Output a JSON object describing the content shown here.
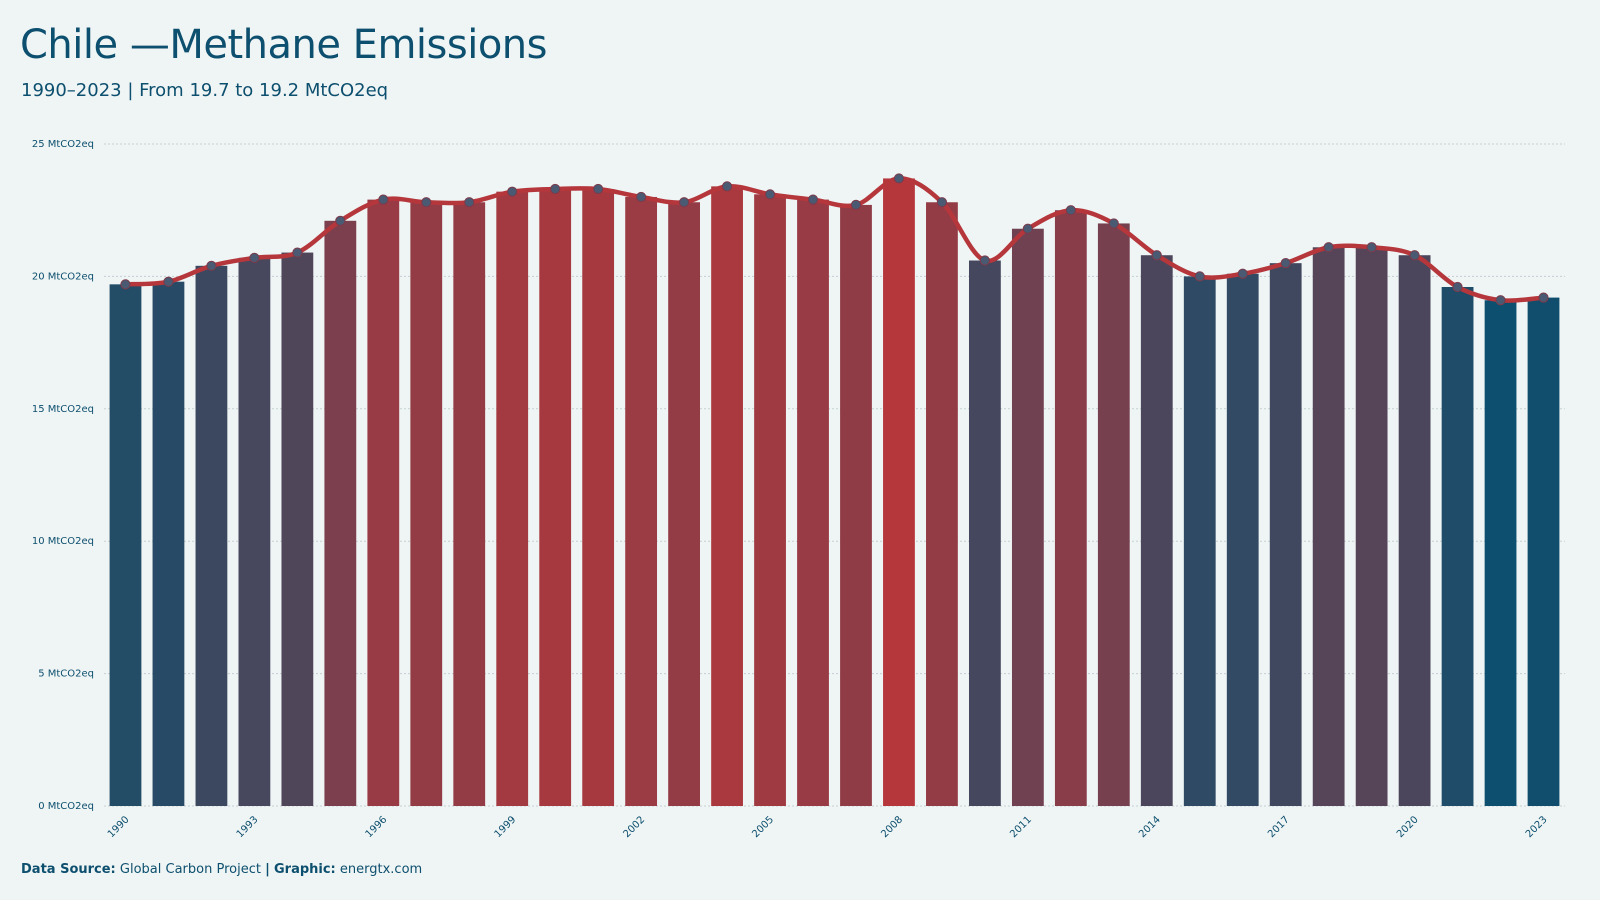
{
  "header": {
    "title": "Chile —Methane Emissions",
    "subtitle": "1990–2023 | From 19.7 to 19.2 MtCO2eq"
  },
  "footer": {
    "source_label": "Data Source:",
    "source_value": "Global Carbon Project",
    "separator": "|",
    "graphic_label": "Graphic:",
    "graphic_value": "energtx.com"
  },
  "colors": {
    "background": "#eff5f5",
    "text": "#0d4f6e",
    "line": "#b5373c",
    "low": "#0d4f6e",
    "high": "#b5373c",
    "point_fill": "#4a5a72"
  },
  "chart_data": {
    "type": "bar",
    "overlay": "line",
    "categories": [
      "1990",
      "1991",
      "1992",
      "1993",
      "1994",
      "1995",
      "1996",
      "1997",
      "1998",
      "1999",
      "2000",
      "2001",
      "2002",
      "2003",
      "2004",
      "2005",
      "2006",
      "2007",
      "2008",
      "2009",
      "2010",
      "2011",
      "2012",
      "2013",
      "2014",
      "2015",
      "2016",
      "2017",
      "2018",
      "2019",
      "2020",
      "2021",
      "2022",
      "2023"
    ],
    "values": [
      19.7,
      19.8,
      20.4,
      20.7,
      20.9,
      22.1,
      22.9,
      22.8,
      22.8,
      23.2,
      23.3,
      23.3,
      23.0,
      22.8,
      23.4,
      23.1,
      22.9,
      22.7,
      23.7,
      22.8,
      20.6,
      21.8,
      22.5,
      22.0,
      20.8,
      20.0,
      20.1,
      20.5,
      21.1,
      21.1,
      20.8,
      19.6,
      19.1,
      19.2
    ],
    "x_tick_labels": [
      "1990",
      "1993",
      "1996",
      "1999",
      "2002",
      "2005",
      "2008",
      "2011",
      "2014",
      "2017",
      "2020",
      "2023"
    ],
    "y_ticks": [
      0,
      5,
      10,
      15,
      20,
      25
    ],
    "y_tick_labels": [
      "0 MtCO2eq",
      "5 MtCO2eq",
      "10 MtCO2eq",
      "15 MtCO2eq",
      "20 MtCO2eq",
      "25 MtCO2eq"
    ],
    "ylim": [
      0,
      25
    ],
    "grid": "horizontal dotted"
  }
}
